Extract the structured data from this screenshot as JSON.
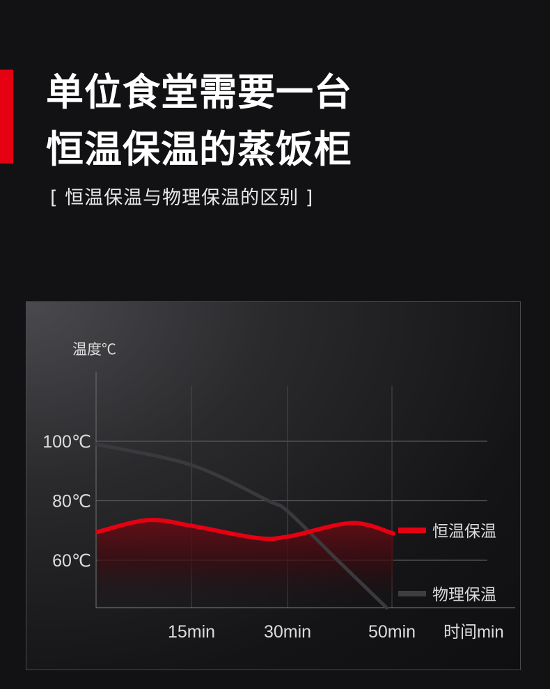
{
  "header": {
    "title_line1": "单位食堂需要一台",
    "title_line2": "恒温保温的蒸饭柜",
    "subtitle": "[ 恒温保温与物理保温的区别 ]",
    "accent_color": "#e50012"
  },
  "chart_data": {
    "type": "line",
    "title": "",
    "ylabel": "温度℃",
    "xlabel": "时间min",
    "y_ticks": [
      "100℃",
      "80℃",
      "60℃"
    ],
    "y_tick_values": [
      100,
      80,
      60
    ],
    "x_ticks": [
      "15min",
      "30min",
      "50min"
    ],
    "x_tick_values": [
      15,
      30,
      50
    ],
    "ylim": [
      44,
      121
    ],
    "xlim": [
      0,
      50
    ],
    "grid": true,
    "legend": "right",
    "series": [
      {
        "name": "恒温保温",
        "color": "#e50012",
        "x": [
          0,
          8,
          15,
          25,
          30,
          42,
          50
        ],
        "y": [
          69.5,
          73.5,
          71.5,
          67.5,
          68,
          72.5,
          69
        ]
      },
      {
        "name": "物理保温",
        "color": "#3a3a3e",
        "x": [
          0,
          15,
          27,
          30,
          39,
          49
        ],
        "y": [
          99,
          92,
          80,
          76.5,
          61,
          44
        ]
      }
    ]
  }
}
